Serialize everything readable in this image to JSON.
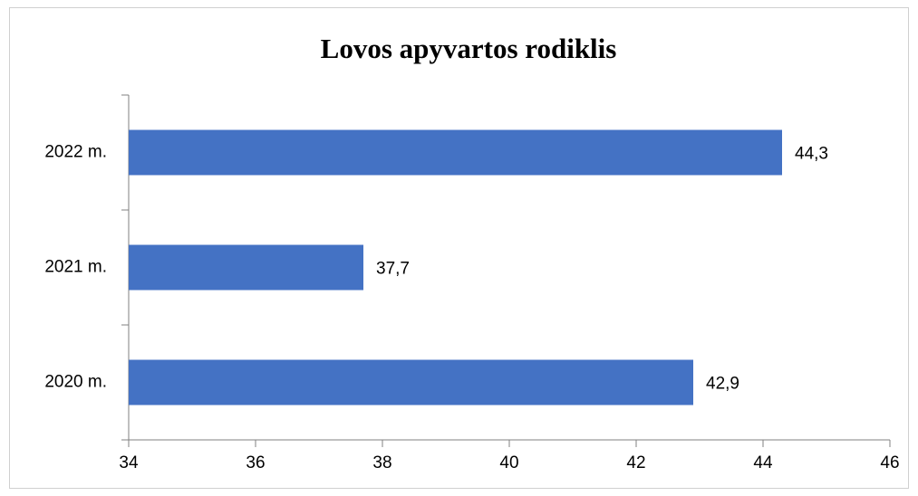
{
  "chart_data": {
    "type": "bar",
    "orientation": "horizontal",
    "title": "Lovos apyvartos rodiklis",
    "categories": [
      "2022 m.",
      "2021 m.",
      "2020 m."
    ],
    "values": [
      44.3,
      37.7,
      42.9
    ],
    "value_labels": [
      "44,3",
      "37,7",
      "42,9"
    ],
    "color": "#4472c4",
    "xlim": [
      34,
      46
    ],
    "xticks": [
      34,
      36,
      38,
      40,
      42,
      44,
      46
    ],
    "grid": false
  }
}
